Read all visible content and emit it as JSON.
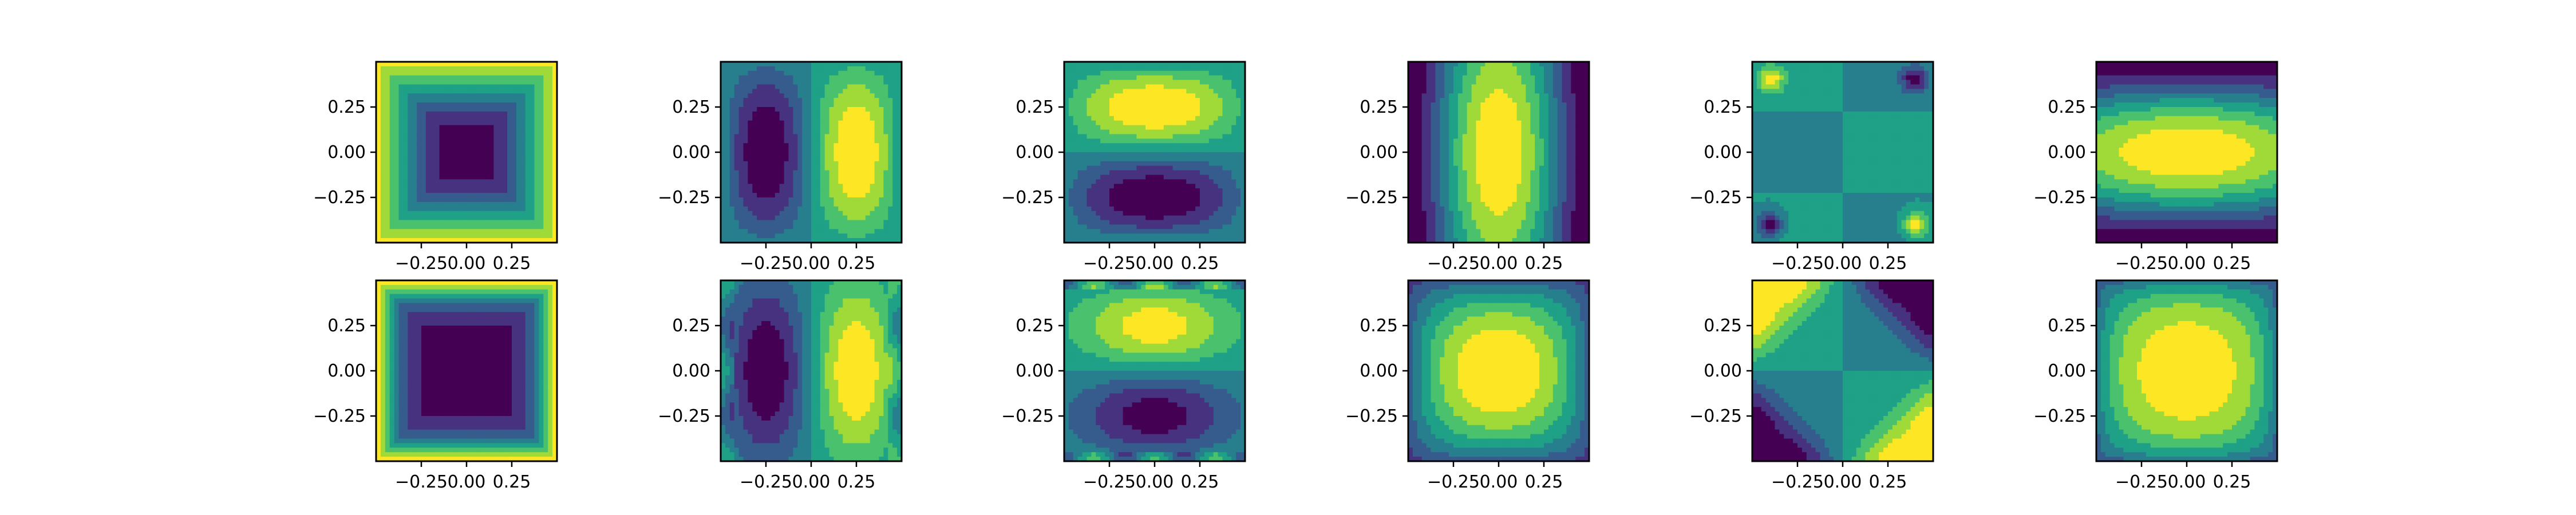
{
  "chart_data": {
    "type": "heatmap",
    "layout": "2 rows x 6 columns of filled-contour panels",
    "colormap": "viridis",
    "colormap_stops": [
      "#440154",
      "#46327e",
      "#365c8d",
      "#277f8e",
      "#1fa187",
      "#4ac16d",
      "#a0da39",
      "#fde725"
    ],
    "levels": 8,
    "xlim": [
      -0.5,
      0.5
    ],
    "ylim": [
      -0.5,
      0.5
    ],
    "x_ticks": [
      -0.25,
      0.0,
      0.25
    ],
    "y_ticks": [
      0.25,
      0.0,
      -0.25
    ],
    "x_tick_labels": [
      "−0.25",
      "0.00",
      "0.25"
    ],
    "y_tick_labels": [
      "0.25",
      "0.00",
      "−0.25"
    ],
    "grid": false,
    "title": "",
    "xlabel": "",
    "ylabel": "",
    "panels": [
      {
        "row": 0,
        "col": 0,
        "pattern": "bowl",
        "params": {
          "amp": 1.0
        }
      },
      {
        "row": 0,
        "col": 1,
        "pattern": "dipole_x",
        "params": {
          "amp": 1.0
        }
      },
      {
        "row": 0,
        "col": 2,
        "pattern": "dipole_y",
        "params": {
          "amp": 1.0
        }
      },
      {
        "row": 0,
        "col": 3,
        "pattern": "dome_x",
        "params": {
          "amp": 1.0
        }
      },
      {
        "row": 0,
        "col": 4,
        "pattern": "corners",
        "params": {
          "amp": 1.0
        }
      },
      {
        "row": 0,
        "col": 5,
        "pattern": "dome_y",
        "params": {
          "amp": 1.0
        }
      },
      {
        "row": 1,
        "col": 0,
        "pattern": "bowl_sharp",
        "params": {
          "amp": 1.0
        }
      },
      {
        "row": 1,
        "col": 1,
        "pattern": "dipole_x_edges",
        "params": {
          "amp": 1.0
        }
      },
      {
        "row": 1,
        "col": 2,
        "pattern": "dipole_y_edges",
        "params": {
          "amp": 1.0
        }
      },
      {
        "row": 1,
        "col": 3,
        "pattern": "dome",
        "params": {
          "amp": 1.0
        }
      },
      {
        "row": 1,
        "col": 4,
        "pattern": "quadrants",
        "params": {
          "amp": 1.0
        }
      },
      {
        "row": 1,
        "col": 5,
        "pattern": "dome_wide",
        "params": {
          "amp": 1.0
        }
      }
    ]
  }
}
